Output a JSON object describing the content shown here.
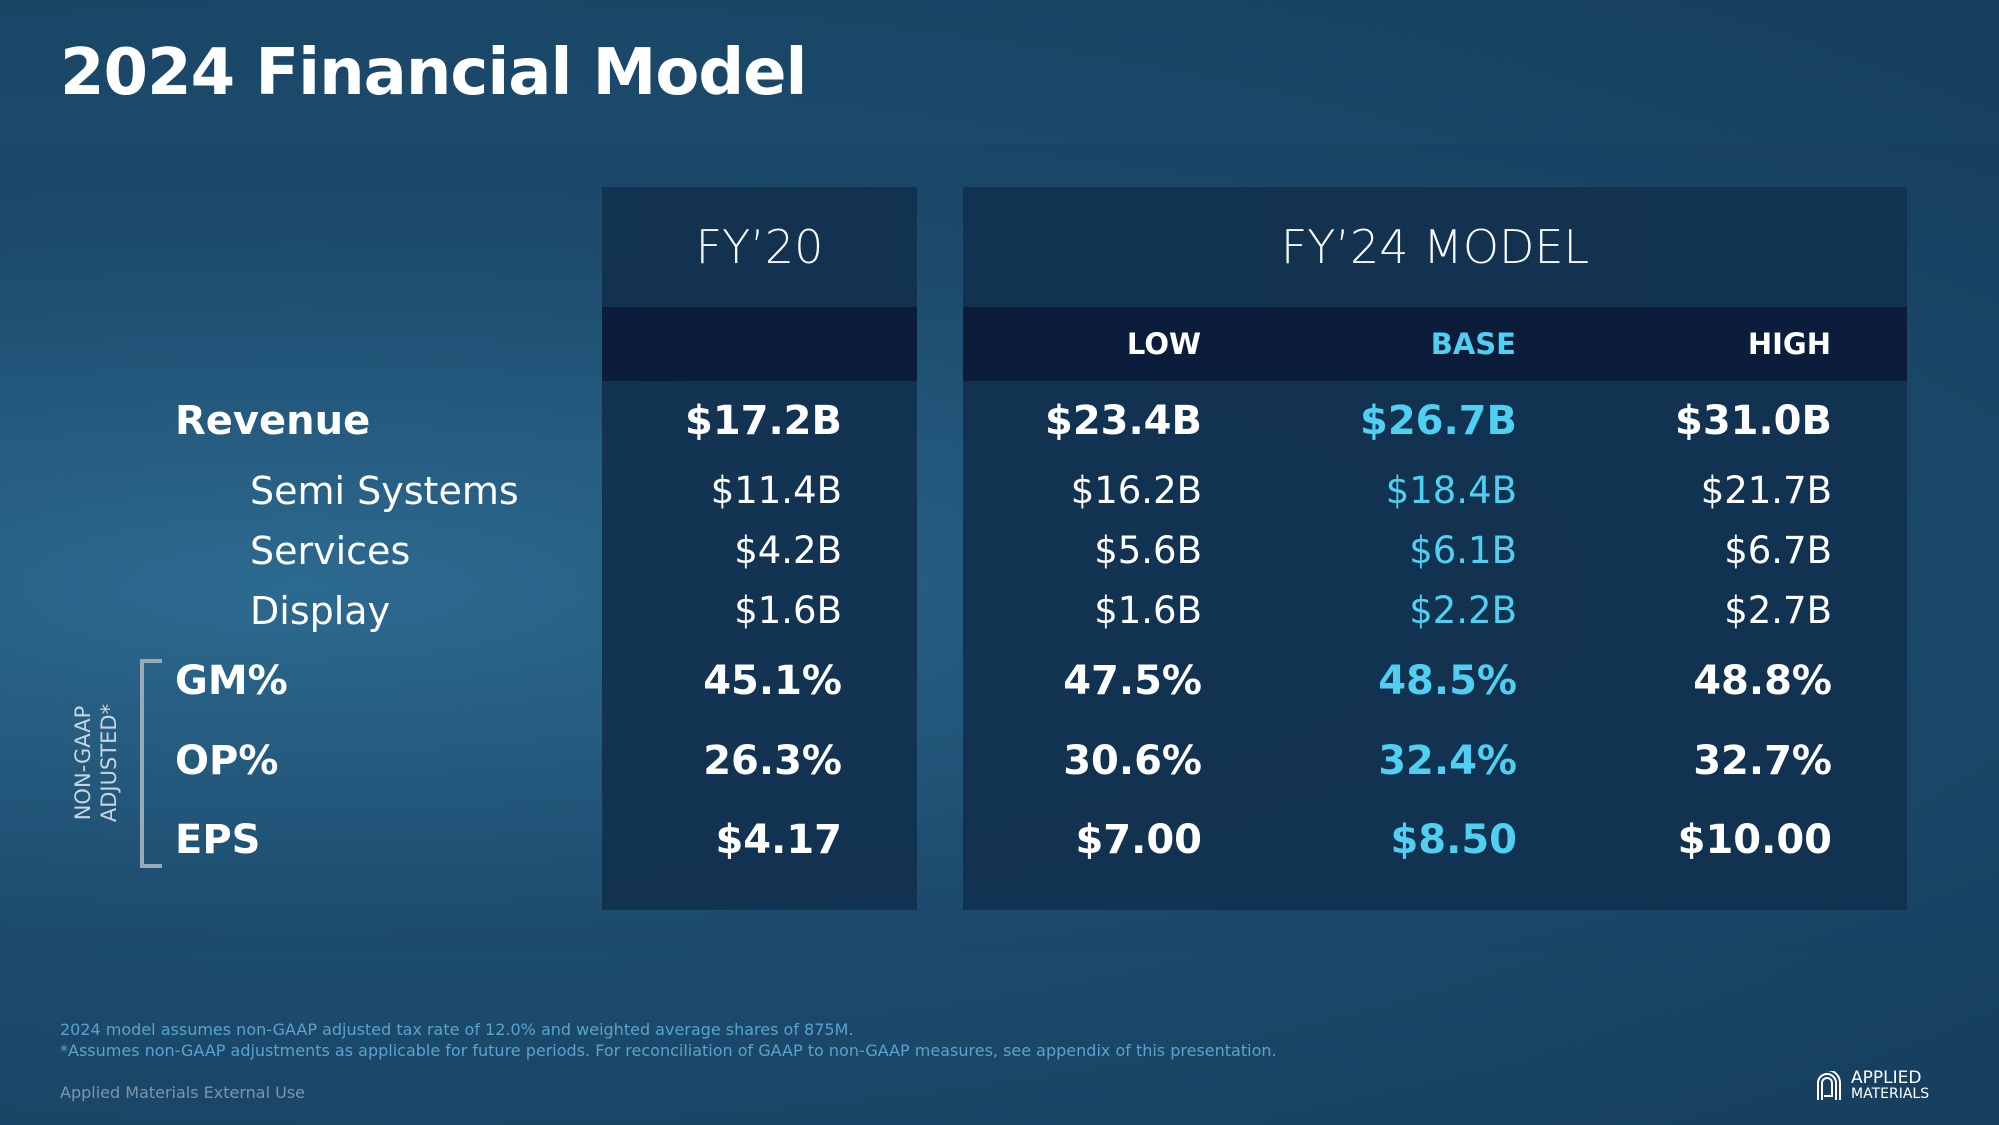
{
  "title": "2024 Financial Model",
  "headers": {
    "fy20": "FY’20",
    "fy24": "FY’24 MODEL",
    "low": "LOW",
    "base": "BASE",
    "high": "HIGH"
  },
  "rows": [
    {
      "label": "Revenue",
      "fy20": "$17.2B",
      "low": "$23.4B",
      "base": "$26.7B",
      "high": "$31.0B"
    },
    {
      "label": "Semi Systems",
      "fy20": "$11.4B",
      "low": "$16.2B",
      "base": "$18.4B",
      "high": "$21.7B"
    },
    {
      "label": "Services",
      "fy20": "$4.2B",
      "low": "$5.6B",
      "base": "$6.1B",
      "high": "$6.7B"
    },
    {
      "label": "Display",
      "fy20": "$1.6B",
      "low": "$1.6B",
      "base": "$2.2B",
      "high": "$2.7B"
    },
    {
      "label": "GM%",
      "fy20": "45.1%",
      "low": "47.5%",
      "base": "48.5%",
      "high": "48.8%"
    },
    {
      "label": "OP%",
      "fy20": "26.3%",
      "low": "30.6%",
      "base": "32.4%",
      "high": "32.7%"
    },
    {
      "label": "EPS",
      "fy20": "$4.17",
      "low": "$7.00",
      "base": "$8.50",
      "high": "$10.00"
    }
  ],
  "bracket_label": {
    "line1": "NON-GAAP",
    "line2": "ADJUSTED*"
  },
  "footnotes": [
    "2024 model assumes non-GAAP adjusted  tax rate of 12.0% and weighted average shares of 875M.",
    "*Assumes non-GAAP adjustments as applicable for future periods. For reconciliation of GAAP to non-GAAP measures, see appendix of this presentation."
  ],
  "classification": "Applied Materials External Use",
  "logo": {
    "line1": "APPLIED",
    "line2": "MATERIALS"
  },
  "colors": {
    "base_accent": "#4fd0f3",
    "panel": "#12324f",
    "header_row": "#0b1d3a"
  }
}
